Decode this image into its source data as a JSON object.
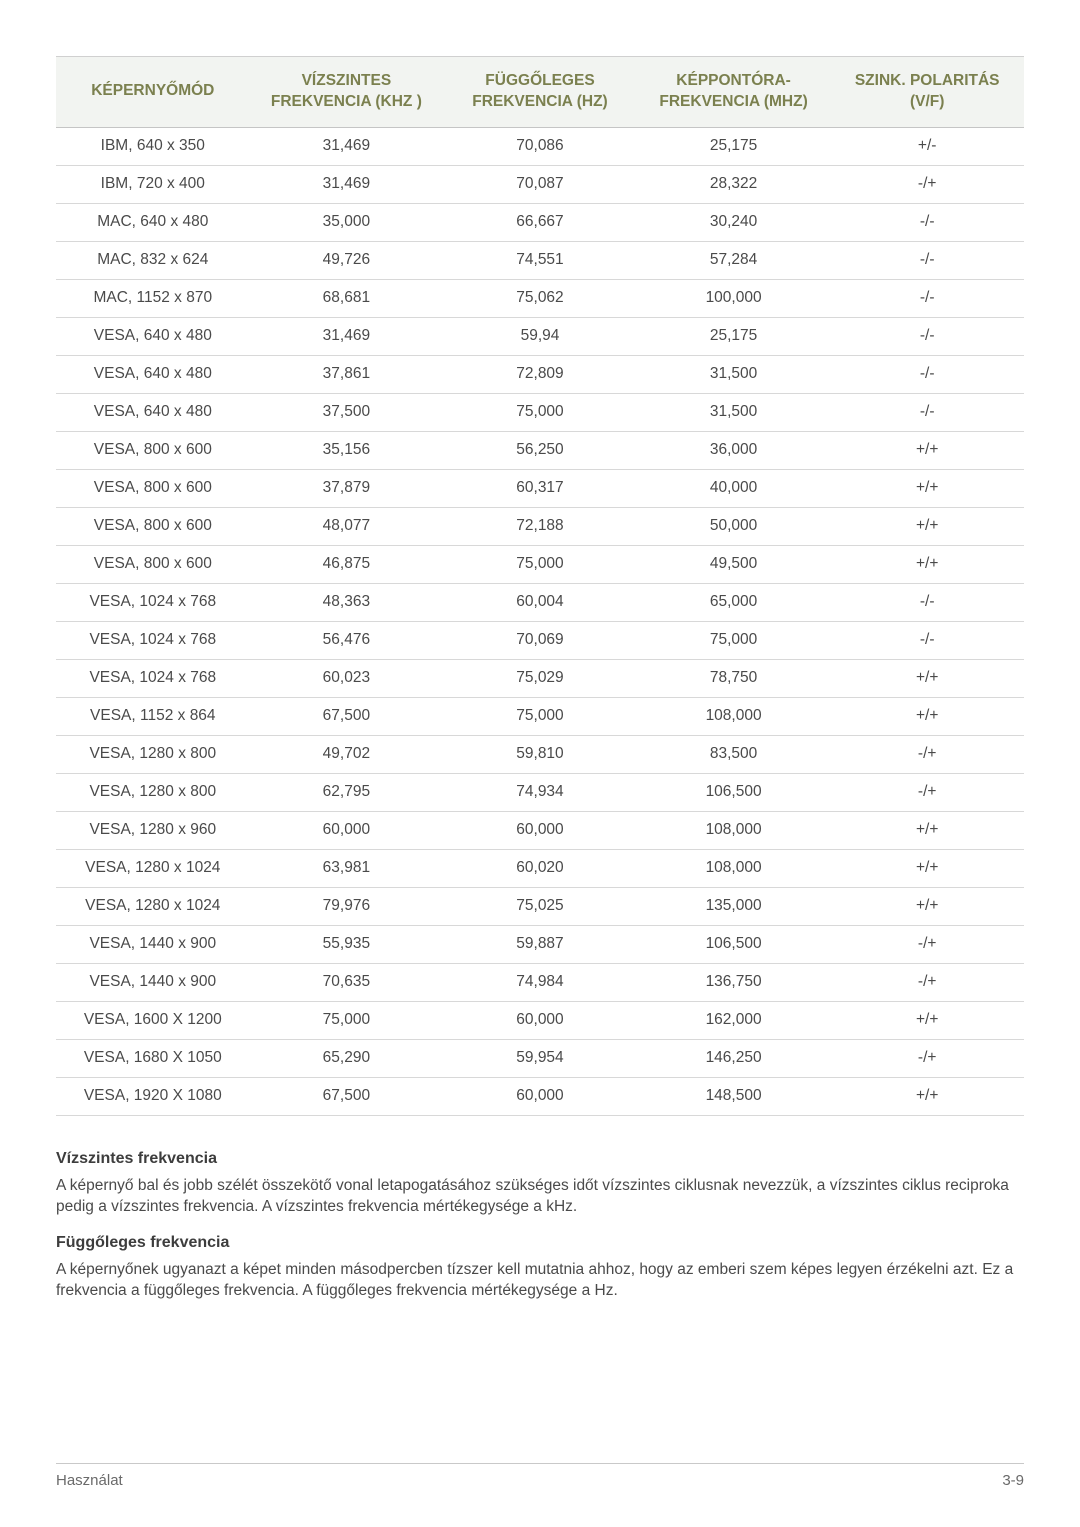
{
  "table": {
    "columns": [
      {
        "line1": "KÉPERNYŐMÓD",
        "line2": ""
      },
      {
        "line1": "VÍZSZINTES",
        "line2": "FREKVENCIA (KHZ )"
      },
      {
        "line1": "FÜGGŐLEGES",
        "line2": "FREKVENCIA (HZ)"
      },
      {
        "line1": "KÉPPONTÓRA-",
        "line2": "FREKVENCIA (MHZ)"
      },
      {
        "line1": "SZINK. POLARITÁS",
        "line2": "(V/F)"
      }
    ],
    "col_widths_pct": [
      20,
      20,
      20,
      20,
      20
    ],
    "rows": [
      [
        "IBM, 640 x 350",
        "31,469",
        "70,086",
        "25,175",
        "+/-"
      ],
      [
        "IBM, 720 x 400",
        "31,469",
        "70,087",
        "28,322",
        "-/+"
      ],
      [
        "MAC, 640 x 480",
        "35,000",
        "66,667",
        "30,240",
        "-/-"
      ],
      [
        "MAC, 832 x 624",
        "49,726",
        "74,551",
        "57,284",
        "-/-"
      ],
      [
        "MAC, 1152 x 870",
        "68,681",
        "75,062",
        "100,000",
        "-/-"
      ],
      [
        "VESA, 640 x 480",
        "31,469",
        "59,94",
        "25,175",
        "-/-"
      ],
      [
        "VESA, 640 x 480",
        "37,861",
        "72,809",
        "31,500",
        "-/-"
      ],
      [
        "VESA, 640 x 480",
        "37,500",
        "75,000",
        "31,500",
        "-/-"
      ],
      [
        "VESA, 800 x 600",
        "35,156",
        "56,250",
        "36,000",
        "+/+"
      ],
      [
        "VESA, 800 x 600",
        "37,879",
        "60,317",
        "40,000",
        "+/+"
      ],
      [
        "VESA, 800 x 600",
        "48,077",
        "72,188",
        "50,000",
        "+/+"
      ],
      [
        "VESA, 800 x 600",
        "46,875",
        "75,000",
        "49,500",
        "+/+"
      ],
      [
        "VESA, 1024 x 768",
        "48,363",
        "60,004",
        "65,000",
        "-/-"
      ],
      [
        "VESA, 1024 x 768",
        "56,476",
        "70,069",
        "75,000",
        "-/-"
      ],
      [
        "VESA, 1024 x 768",
        "60,023",
        "75,029",
        "78,750",
        "+/+"
      ],
      [
        "VESA, 1152 x 864",
        "67,500",
        "75,000",
        "108,000",
        "+/+"
      ],
      [
        "VESA, 1280 x 800",
        "49,702",
        "59,810",
        "83,500",
        "-/+"
      ],
      [
        "VESA, 1280 x 800",
        "62,795",
        "74,934",
        "106,500",
        "-/+"
      ],
      [
        "VESA, 1280 x 960",
        "60,000",
        "60,000",
        "108,000",
        "+/+"
      ],
      [
        "VESA, 1280 x 1024",
        "63,981",
        "60,020",
        "108,000",
        "+/+"
      ],
      [
        "VESA, 1280 x 1024",
        "79,976",
        "75,025",
        "135,000",
        "+/+"
      ],
      [
        "VESA, 1440 x 900",
        "55,935",
        "59,887",
        "106,500",
        "-/+"
      ],
      [
        "VESA, 1440 x 900",
        "70,635",
        "74,984",
        "136,750",
        "-/+"
      ],
      [
        "VESA, 1600 X 1200",
        "75,000",
        "60,000",
        "162,000",
        "+/+"
      ],
      [
        "VESA, 1680 X 1050",
        "65,290",
        "59,954",
        "146,250",
        "-/+"
      ],
      [
        "VESA, 1920 X 1080",
        "67,500",
        "60,000",
        "148,500",
        "+/+"
      ]
    ],
    "header_bg": "#f2f4f1",
    "header_color": "#7b804f",
    "border_color": "#d8d8d8",
    "text_color": "#4a4a4a",
    "fontsize": 15.5
  },
  "sections": [
    {
      "title": "Vízszintes frekvencia",
      "body": "A képernyő bal és jobb szélét összekötő vonal letapogatásához szükséges időt vízszintes ciklusnak nevezzük, a vízszintes ciklus reciproka pedig a vízszintes frekvencia. A vízszintes frekvencia mértékegysége a kHz."
    },
    {
      "title": "Függőleges frekvencia",
      "body": "A képernyőnek ugyanazt a képet minden másodpercben tízszer kell mutatnia ahhoz, hogy az emberi szem képes legyen érzékelni azt. Ez a frekvencia a függőleges frekvencia. A függőleges frekvencia mértékegysége a Hz."
    }
  ],
  "footer": {
    "left": "Használat",
    "right": "3-9"
  }
}
